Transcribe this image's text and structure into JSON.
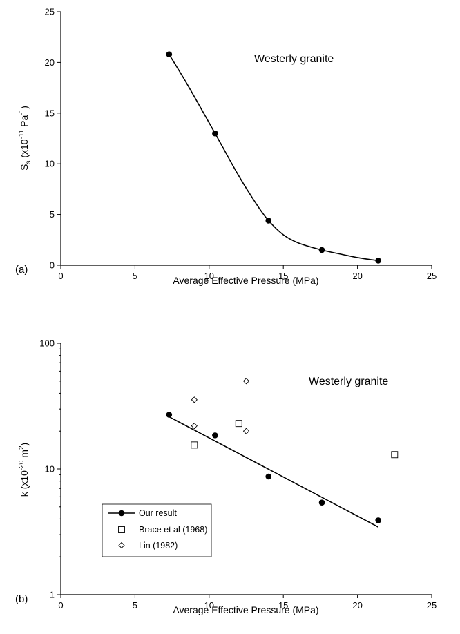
{
  "chart_data": [
    {
      "type": "scatter",
      "panel_label": "(a)",
      "annotation": "Westerly granite",
      "xlabel": "Average Effective Pressure (MPa)",
      "ylabel": {
        "main": "S",
        "sub": "s",
        "open": " (x10",
        "exp": "-11",
        "unit": " Pa",
        "unit_exp": "-1",
        "close": ")"
      },
      "xlim": [
        0,
        25
      ],
      "ylim": [
        0,
        25
      ],
      "xticks": [
        "0",
        "5",
        "10",
        "15",
        "20",
        "25"
      ],
      "yticks": [
        "0",
        "5",
        "10",
        "15",
        "20",
        "25"
      ],
      "grid": false,
      "series": [
        {
          "marker": "filled-circle",
          "color": "#000000",
          "x": [
            7.3,
            10.4,
            14.0,
            17.6,
            21.4
          ],
          "y": [
            20.8,
            13.0,
            4.4,
            1.5,
            0.45
          ]
        }
      ],
      "fit_curve": {
        "x": [
          7.3,
          8.5,
          10.4,
          12.0,
          13.2,
          14.0,
          15.0,
          16.0,
          17.6,
          19.0,
          20.2,
          21.4
        ],
        "y": [
          20.8,
          17.9,
          13.0,
          8.8,
          6.0,
          4.4,
          3.0,
          2.2,
          1.5,
          1.05,
          0.7,
          0.45
        ]
      }
    },
    {
      "type": "scatter",
      "panel_label": "(b)",
      "annotation": "Westerly granite",
      "xlabel": "Average Effective Pressure (MPa)",
      "ylabel": {
        "main": "k",
        "open": " (x10",
        "exp": "-20",
        "unit": " m",
        "unit_exp": "2",
        "close": ")"
      },
      "xlim": [
        0,
        25
      ],
      "ylim": [
        1,
        100
      ],
      "yscale": "log",
      "xticks": [
        "0",
        "5",
        "10",
        "15",
        "20",
        "25"
      ],
      "yticks": [
        "1",
        "10",
        "100"
      ],
      "grid": false,
      "legend_position": "bottom-left",
      "series": [
        {
          "name": "Our result",
          "marker": "filled-circle",
          "color": "#000000",
          "x": [
            7.3,
            10.4,
            14.0,
            17.6,
            21.4
          ],
          "y": [
            27,
            18.5,
            8.7,
            5.4,
            3.9
          ]
        },
        {
          "name": "Brace et al (1968)",
          "marker": "open-square",
          "color": "#000000",
          "x": [
            9.0,
            12.0,
            22.5
          ],
          "y": [
            15.5,
            23.0,
            13.0
          ]
        },
        {
          "name": "Lin (1982)",
          "marker": "open-diamond",
          "color": "#000000",
          "x": [
            9.0,
            9.0,
            12.5,
            12.5
          ],
          "y": [
            35.5,
            22.0,
            20.0,
            50.0
          ]
        }
      ],
      "fit_line": {
        "x": [
          7.3,
          21.4
        ],
        "y": [
          26.0,
          3.45
        ]
      }
    }
  ]
}
